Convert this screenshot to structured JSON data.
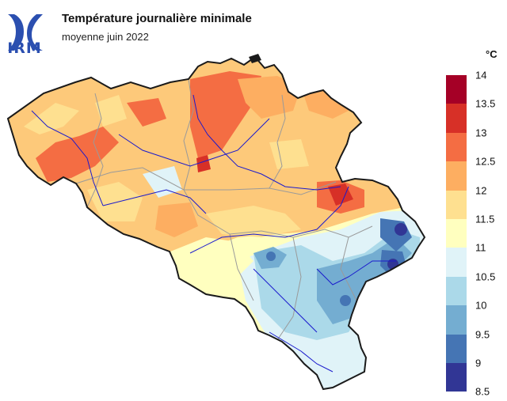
{
  "header": {
    "logo_text": "IRM",
    "title": "Température journalière minimale",
    "subtitle": "moyenne juin 2022"
  },
  "legend": {
    "unit": "°C",
    "ticks": [
      "14",
      "13.5",
      "13",
      "12.5",
      "12",
      "11.5",
      "11",
      "10.5",
      "10",
      "9.5",
      "9",
      "8.5"
    ],
    "colors": [
      "#a50026",
      "#d73027",
      "#f46d43",
      "#fdae61",
      "#fee090",
      "#ffffbf",
      "#e0f3f8",
      "#abd9e9",
      "#74add1",
      "#4575b4",
      "#313695"
    ]
  },
  "icons": {
    "logo": "irm-logo-icon"
  }
}
